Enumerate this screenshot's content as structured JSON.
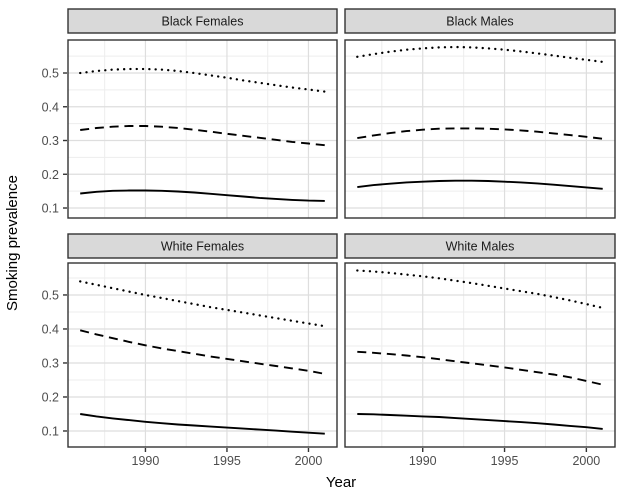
{
  "chart_data": {
    "type": "line",
    "title": "",
    "xlabel": "Year",
    "ylabel": "Smoking prevalence",
    "x": [
      1986,
      1987,
      1988,
      1989,
      1990,
      1991,
      1992,
      1993,
      1994,
      1995,
      1996,
      1997,
      1998,
      1999,
      2000,
      2001
    ],
    "x_ticks": [
      1990,
      1995,
      2000
    ],
    "x_minor": [
      1987.5,
      1992.5,
      1997.5
    ],
    "y_ticks": [
      0.1,
      0.2,
      0.3,
      0.4,
      0.5
    ],
    "y_minor": [
      0.15,
      0.25,
      0.35,
      0.45,
      0.55
    ],
    "xlim": [
      1985.25,
      2001.75
    ],
    "ylim": [
      0.05,
      0.6
    ],
    "grid": "major+minor",
    "legend_position": "none",
    "facets": [
      {
        "label": "Black Females",
        "series": [
          {
            "name": "dotted-line",
            "linetype": "dotted",
            "values": [
              0.5,
              0.506,
              0.51,
              0.512,
              0.512,
              0.51,
              0.506,
              0.5,
              0.493,
              0.486,
              0.478,
              0.471,
              0.464,
              0.457,
              0.451,
              0.445
            ]
          },
          {
            "name": "dashed-line",
            "linetype": "dashed",
            "values": [
              0.331,
              0.337,
              0.341,
              0.343,
              0.343,
              0.341,
              0.337,
              0.332,
              0.326,
              0.32,
              0.314,
              0.308,
              0.302,
              0.296,
              0.291,
              0.286
            ]
          },
          {
            "name": "solid-line",
            "linetype": "solid",
            "values": [
              0.143,
              0.148,
              0.151,
              0.152,
              0.152,
              0.151,
              0.149,
              0.146,
              0.142,
              0.138,
              0.134,
              0.13,
              0.127,
              0.124,
              0.122,
              0.121
            ]
          }
        ]
      },
      {
        "label": "Black Males",
        "series": [
          {
            "name": "dotted-line",
            "linetype": "dotted",
            "values": [
              0.548,
              0.556,
              0.563,
              0.569,
              0.573,
              0.576,
              0.577,
              0.576,
              0.573,
              0.569,
              0.564,
              0.558,
              0.552,
              0.545,
              0.539,
              0.533
            ]
          },
          {
            "name": "dashed-line",
            "linetype": "dashed",
            "values": [
              0.307,
              0.315,
              0.322,
              0.328,
              0.332,
              0.335,
              0.336,
              0.336,
              0.335,
              0.333,
              0.33,
              0.326,
              0.321,
              0.316,
              0.311,
              0.305
            ]
          },
          {
            "name": "solid-line",
            "linetype": "solid",
            "values": [
              0.162,
              0.168,
              0.172,
              0.176,
              0.178,
              0.18,
              0.181,
              0.181,
              0.18,
              0.178,
              0.176,
              0.173,
              0.169,
              0.165,
              0.161,
              0.157
            ]
          }
        ]
      },
      {
        "label": "White Females",
        "series": [
          {
            "name": "dotted-line",
            "linetype": "dotted",
            "values": [
              0.54,
              0.53,
              0.52,
              0.51,
              0.5,
              0.491,
              0.482,
              0.473,
              0.464,
              0.456,
              0.448,
              0.44,
              0.432,
              0.424,
              0.416,
              0.408
            ]
          },
          {
            "name": "dashed-line",
            "linetype": "dashed",
            "values": [
              0.396,
              0.384,
              0.373,
              0.362,
              0.352,
              0.343,
              0.335,
              0.327,
              0.319,
              0.312,
              0.305,
              0.298,
              0.291,
              0.284,
              0.277,
              0.268
            ]
          },
          {
            "name": "solid-line",
            "linetype": "solid",
            "values": [
              0.15,
              0.143,
              0.137,
              0.132,
              0.127,
              0.123,
              0.119,
              0.116,
              0.113,
              0.11,
              0.107,
              0.104,
              0.101,
              0.098,
              0.095,
              0.092
            ]
          }
        ]
      },
      {
        "label": "White Males",
        "series": [
          {
            "name": "dotted-line",
            "linetype": "dotted",
            "values": [
              0.572,
              0.569,
              0.565,
              0.56,
              0.555,
              0.549,
              0.542,
              0.535,
              0.527,
              0.519,
              0.511,
              0.503,
              0.494,
              0.484,
              0.473,
              0.462
            ]
          },
          {
            "name": "dashed-line",
            "linetype": "dashed",
            "values": [
              0.333,
              0.33,
              0.326,
              0.322,
              0.317,
              0.311,
              0.305,
              0.299,
              0.293,
              0.287,
              0.28,
              0.273,
              0.266,
              0.258,
              0.247,
              0.236
            ]
          },
          {
            "name": "solid-line",
            "linetype": "solid",
            "values": [
              0.15,
              0.149,
              0.147,
              0.145,
              0.143,
              0.141,
              0.138,
              0.135,
              0.132,
              0.129,
              0.126,
              0.123,
              0.119,
              0.115,
              0.111,
              0.106
            ]
          }
        ]
      }
    ],
    "colors": {
      "line": "#000000",
      "strip_bg": "#d9d9d9",
      "panel_bg": "#ffffff",
      "panel_border": "#333333",
      "grid_major": "#dedede",
      "grid_minor": "#ededed",
      "tick_mark": "#333333",
      "tick_text": "#4d4d4d",
      "strip_text": "#1a1a1a",
      "axis_title_text": "#000000"
    }
  }
}
